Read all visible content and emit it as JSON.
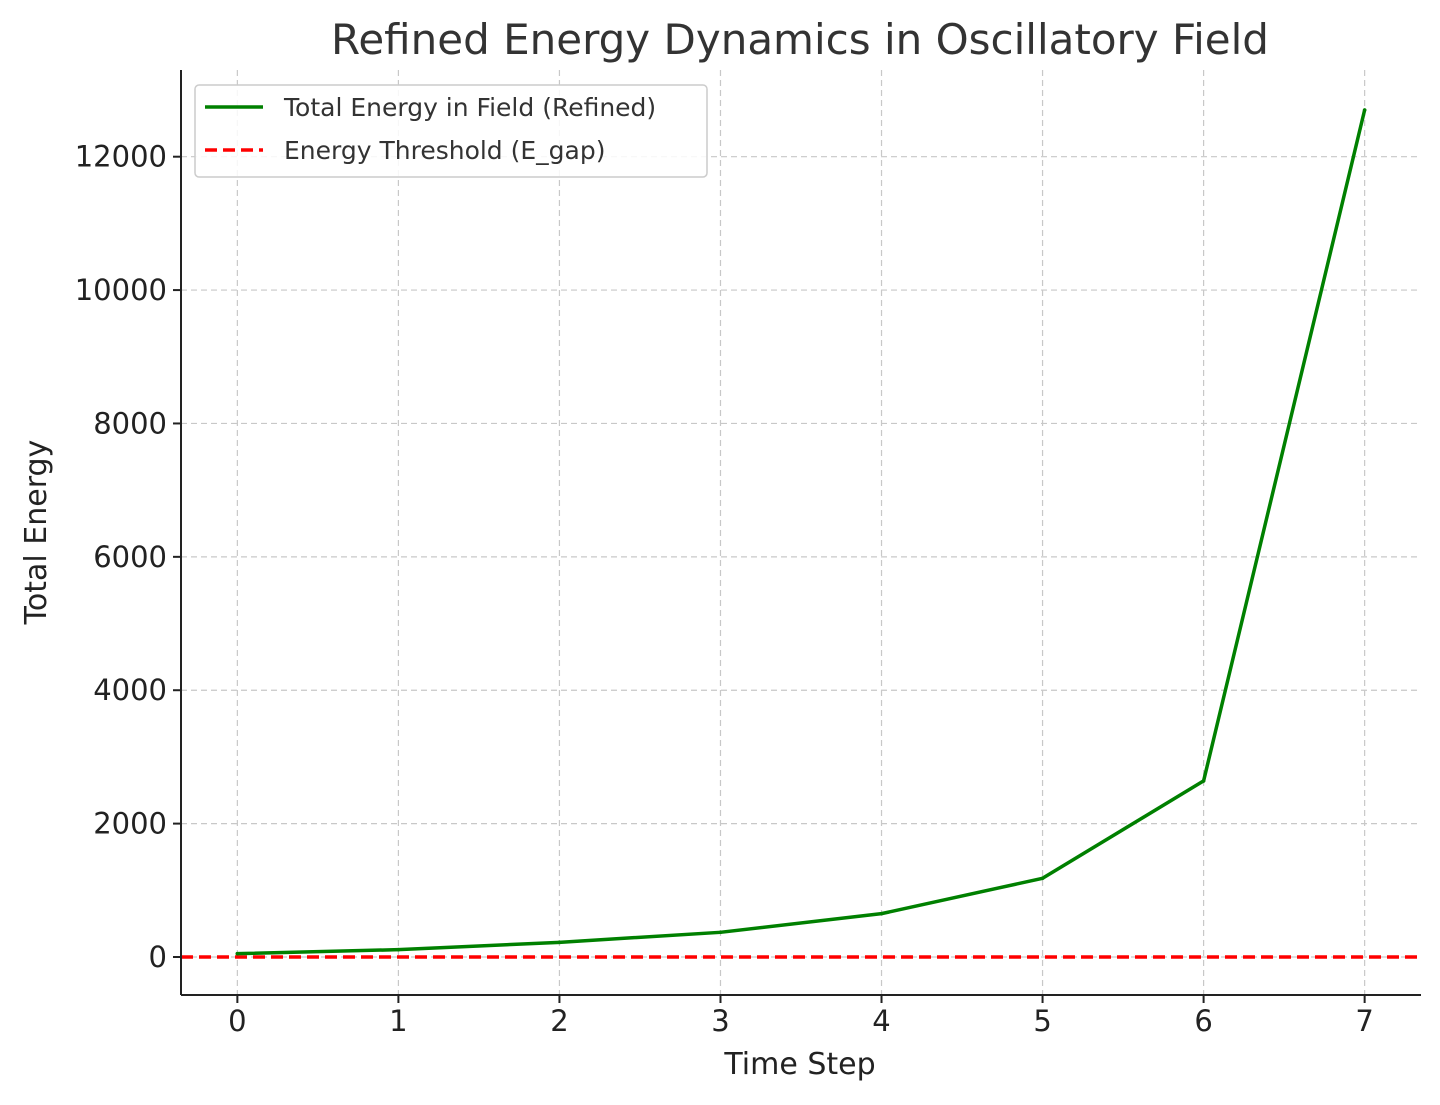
{
  "chart_data": {
    "type": "line",
    "title": "Refined Energy Dynamics in Oscillatory Field",
    "xlabel": "Time Step",
    "ylabel": "Total Energy",
    "x": [
      0,
      1,
      2,
      3,
      4,
      5,
      6,
      7
    ],
    "xticks": [
      "0",
      "1",
      "2",
      "3",
      "4",
      "5",
      "6",
      "7"
    ],
    "yticks": [
      "0",
      "2000",
      "4000",
      "6000",
      "8000",
      "10000",
      "12000"
    ],
    "xlim": [
      -0.35,
      7.35
    ],
    "ylim": [
      -570,
      13300
    ],
    "grid": true,
    "legend_position": "top-left",
    "series": [
      {
        "name": "Total Energy in Field (Refined)",
        "values": [
          50,
          110,
          220,
          370,
          650,
          1180,
          2640,
          12700
        ],
        "color": "#008000",
        "style": "solid"
      }
    ],
    "hlines": [
      {
        "name": "Energy Threshold (E_gap)",
        "value": 0,
        "color": "#ff0000",
        "style": "dashed"
      }
    ]
  }
}
